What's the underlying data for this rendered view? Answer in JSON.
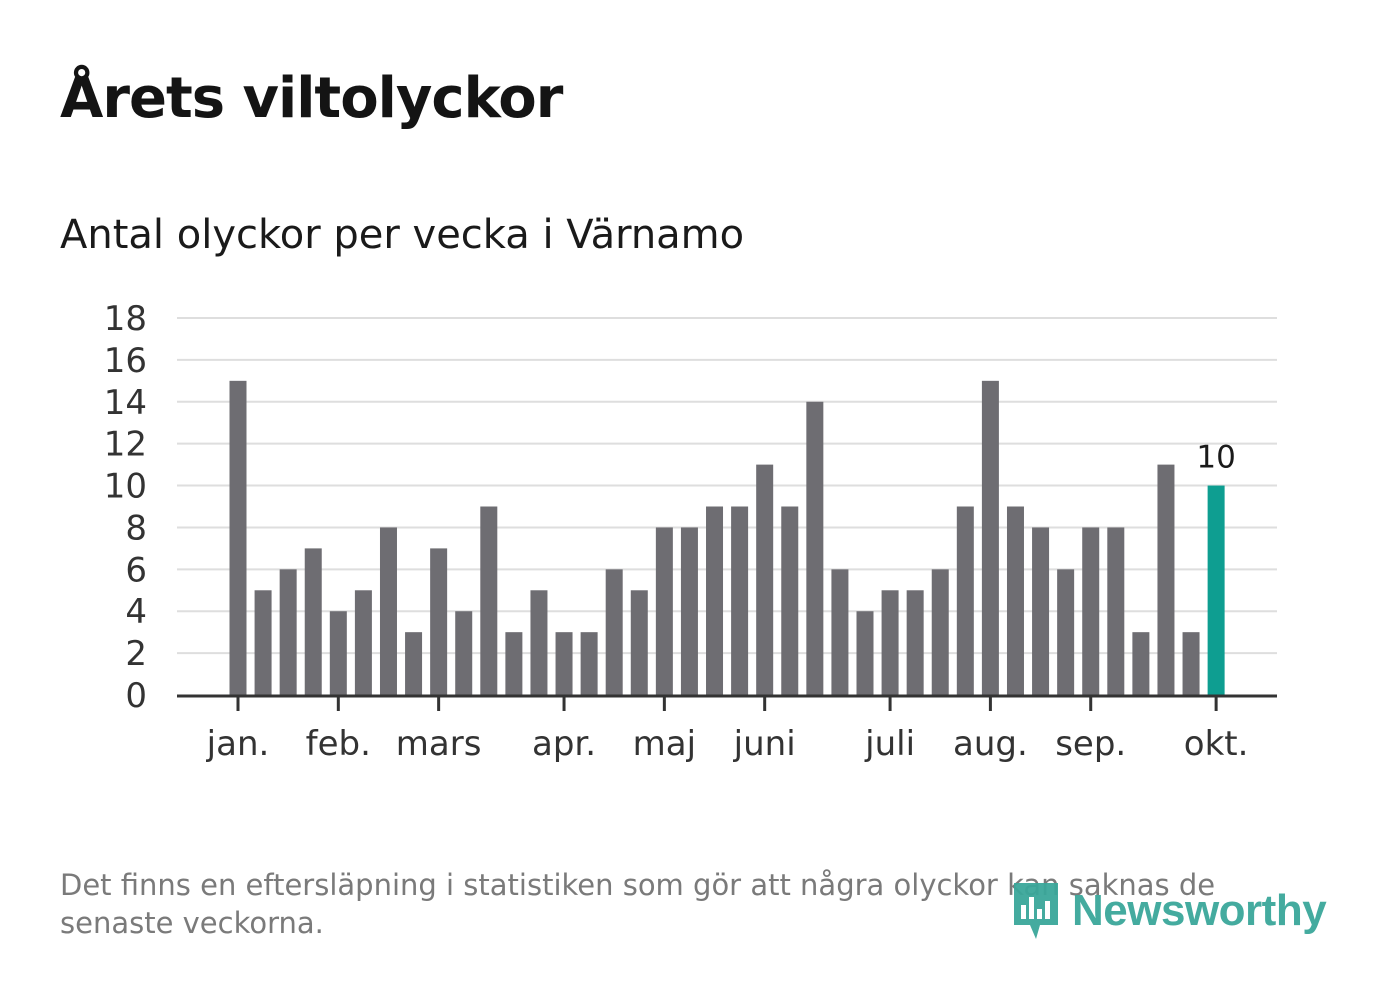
{
  "title": "Årets viltolyckor",
  "subtitle": "Antal olyckor per vecka i Värnamo",
  "footnote": "Det finns en eftersläpning i statistiken som gör att några olyckor kan saknas de senaste veckorna.",
  "logo": {
    "text": "Newsworthy",
    "icon": "newsworthy-bar-chart-icon",
    "color": "#3aa79a"
  },
  "colors": {
    "bar": "#6e6d72",
    "highlight": "#0e9e91",
    "grid": "#dedede",
    "axis": "#333333"
  },
  "chart_data": {
    "type": "bar",
    "title": "Antal olyckor per vecka i Värnamo",
    "xlabel": "",
    "ylabel": "",
    "ylim": [
      0,
      18
    ],
    "yticks": [
      0,
      2,
      4,
      6,
      8,
      10,
      12,
      14,
      16,
      18
    ],
    "grid": true,
    "values": [
      15,
      5,
      6,
      7,
      4,
      5,
      8,
      3,
      7,
      4,
      9,
      3,
      5,
      3,
      3,
      6,
      5,
      8,
      8,
      9,
      9,
      11,
      9,
      14,
      6,
      4,
      5,
      5,
      6,
      9,
      15,
      9,
      8,
      6,
      8,
      8,
      3,
      11,
      3,
      10
    ],
    "highlight_index": 39,
    "highlight_label": "10",
    "month_labels": [
      {
        "label": "jan.",
        "week_index": 0
      },
      {
        "label": "feb.",
        "week_index": 4
      },
      {
        "label": "mars",
        "week_index": 8
      },
      {
        "label": "apr.",
        "week_index": 13
      },
      {
        "label": "maj",
        "week_index": 17
      },
      {
        "label": "juni",
        "week_index": 21
      },
      {
        "label": "juli",
        "week_index": 26
      },
      {
        "label": "aug.",
        "week_index": 30
      },
      {
        "label": "sep.",
        "week_index": 34
      },
      {
        "label": "okt.",
        "week_index": 39
      }
    ]
  }
}
